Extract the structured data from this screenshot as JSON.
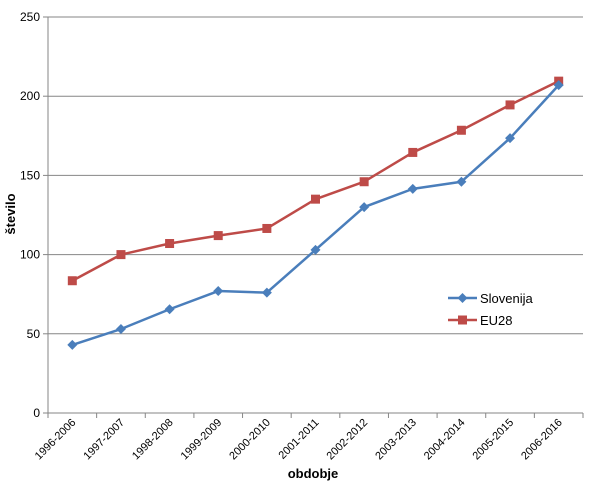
{
  "chart_data": {
    "type": "line",
    "xlabel": "obdobje",
    "ylabel": "število",
    "ylim": [
      0,
      250
    ],
    "yticks": [
      0,
      50,
      100,
      150,
      200,
      250
    ],
    "grid": true,
    "legend_position": "right",
    "categories": [
      "1996-2006",
      "1997-2007",
      "1998-2008",
      "1999-2009",
      "2000-2010",
      "2001-2011",
      "2002-2012",
      "2003-2013",
      "2004-2014",
      "2005-2015",
      "2006-2016"
    ],
    "series": [
      {
        "name": "Slovenija",
        "color": "#4A7EBB",
        "marker": "diamond",
        "values": [
          43,
          53,
          65.5,
          77,
          76,
          103,
          130,
          141.5,
          146,
          173.5,
          207
        ]
      },
      {
        "name": "EU28",
        "color": "#BE4B48",
        "marker": "square",
        "values": [
          83.5,
          100,
          107,
          112,
          116.5,
          135,
          146,
          164.5,
          178.5,
          194.5,
          209.5
        ]
      }
    ]
  }
}
